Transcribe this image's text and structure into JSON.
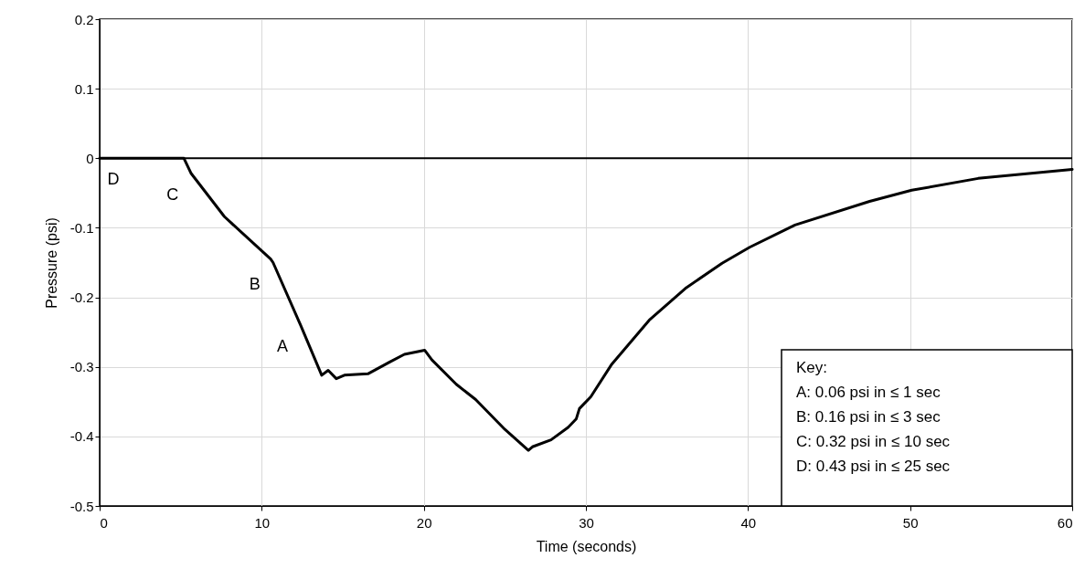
{
  "chart_data": {
    "type": "line",
    "xlabel": "Time (seconds)",
    "ylabel": "Pressure (psi)",
    "xlim": [
      0,
      60
    ],
    "xticks": [
      0,
      10,
      20,
      30,
      40,
      50,
      60
    ],
    "ylim": [
      -0.5,
      0.2
    ],
    "yticks": [
      -0.5,
      -0.4,
      -0.3,
      -0.2,
      -0.1,
      0,
      0.1,
      0.2
    ],
    "grid": true,
    "marker": "none",
    "line_style": "solid",
    "series": [
      {
        "color": "#000000",
        "x": [
          0,
          2,
          4,
          5.2,
          5.65,
          7.7,
          10.55,
          10.7,
          12.4,
          13.7,
          14.1,
          14.6,
          15.1,
          16.55,
          17.9,
          18.8,
          20.05,
          20.5,
          22.0,
          23.2,
          25.0,
          26.45,
          26.7,
          27.85,
          28.9,
          29.4,
          29.6,
          30.3,
          31.6,
          33.9,
          36.2,
          38.4,
          40.1,
          42.9,
          47.5,
          50.1,
          54.2,
          60
        ],
        "values": [
          0,
          0,
          0,
          0,
          -0.022,
          -0.084,
          -0.145,
          -0.15,
          -0.24,
          -0.312,
          -0.305,
          -0.317,
          -0.312,
          -0.31,
          -0.293,
          -0.282,
          -0.276,
          -0.29,
          -0.325,
          -0.347,
          -0.39,
          -0.42,
          -0.415,
          -0.405,
          -0.387,
          -0.375,
          -0.36,
          -0.343,
          -0.296,
          -0.233,
          -0.186,
          -0.151,
          -0.128,
          -0.096,
          -0.062,
          -0.046,
          -0.029,
          -0.016
        ]
      }
    ],
    "ref_lines": [
      {
        "axis": "y",
        "value": 0,
        "color": "#000000"
      }
    ],
    "annotations": [
      {
        "text": "A",
        "x": 12.4,
        "y": -0.24
      },
      {
        "text": "B",
        "x": 10.7,
        "y": -0.15
      },
      {
        "text": "C",
        "x": 5.65,
        "y": -0.022
      },
      {
        "text": "D",
        "x": 2,
        "y": 0
      },
      "Key:",
      "A:  0.06 psi in ≤ 1 sec",
      "B:  0.16 psi in ≤ 3 sec",
      "C:  0.32 psi in ≤ 10 sec",
      "D:  0.43 psi in ≤ 25 sec"
    ]
  }
}
